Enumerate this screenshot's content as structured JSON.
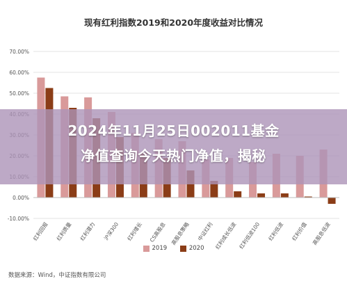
{
  "banner": {
    "line1": "2024年11月25日002011基金",
    "line2": "净值查询今天热门净值，揭秘"
  },
  "source_note": "数据来源：Wind，中证指数有限公司",
  "chart_data": {
    "type": "bar",
    "title": "现有红利指数2019和2020年度收益对比情况",
    "categories": [
      "红利回报",
      "红利质量",
      "红利潜力",
      "沪深300",
      "红利增长",
      "CS高股息",
      "高股息策略",
      "中证红利",
      "红利成长低波",
      "红利低波100",
      "红利低波",
      "红利价值",
      "高股息低波"
    ],
    "series": [
      {
        "name": "2019",
        "color": "#d99a9a",
        "values": [
          57.5,
          48.5,
          48.0,
          41.0,
          31.0,
          28.0,
          27.0,
          18.5,
          19.0,
          17.0,
          21.0,
          20.0,
          23.0
        ]
      },
      {
        "name": "2020",
        "color": "#8b3d17",
        "values": [
          52.5,
          43.0,
          38.0,
          29.0,
          21.5,
          19.0,
          13.0,
          8.0,
          3.0,
          2.0,
          2.0,
          0.5,
          -3.0
        ]
      }
    ],
    "ylim": [
      -10,
      70
    ],
    "yticks": [
      "-10.00%",
      "0.00%",
      "10.00%",
      "20.00%",
      "30.00%",
      "40.00%",
      "50.00%",
      "60.00%",
      "70.00%"
    ],
    "ytick_values": [
      -10,
      0,
      10,
      20,
      30,
      40,
      50,
      60,
      70
    ],
    "legend_position": "bottom",
    "grid": true
  }
}
